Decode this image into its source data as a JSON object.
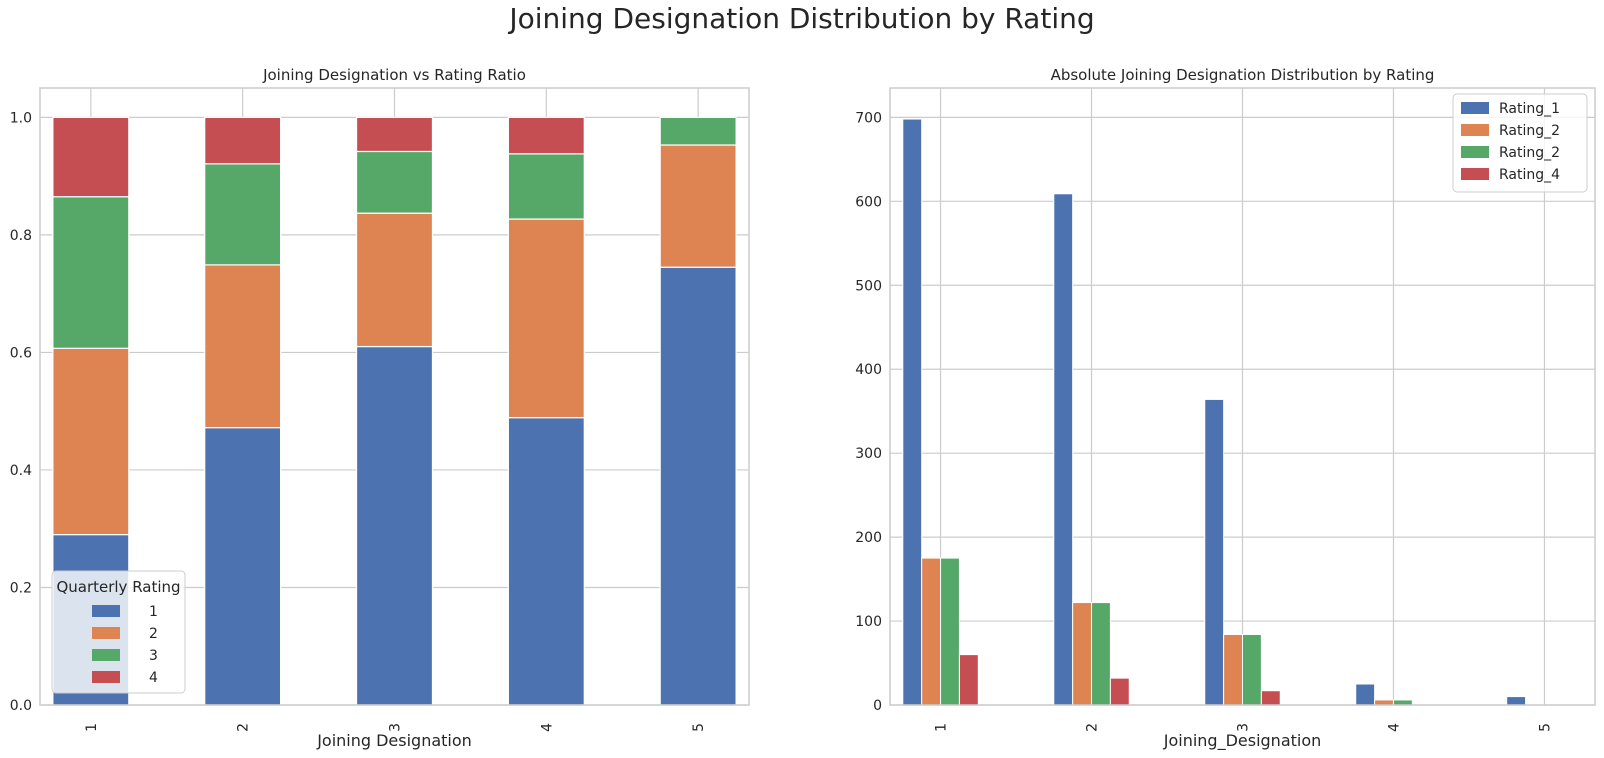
{
  "figure": {
    "suptitle": "Joining Designation Distribution by Rating"
  },
  "chart_data": [
    {
      "type": "bar",
      "stacked": true,
      "title": "Joining Designation vs Rating Ratio",
      "xlabel": "Joining Designation",
      "ylabel": "",
      "categories": [
        "1",
        "2",
        "3",
        "4",
        "5"
      ],
      "ylim": [
        0,
        1.05
      ],
      "yticks": [
        "0.0",
        "0.2",
        "0.4",
        "0.6",
        "0.8",
        "1.0"
      ],
      "grid": true,
      "legend": {
        "title": "Quarterly Rating",
        "placement": "lower-left"
      },
      "series": [
        {
          "name": "1",
          "color": "#4c72b0",
          "values": [
            0.29,
            0.472,
            0.61,
            0.489,
            0.745
          ]
        },
        {
          "name": "2",
          "color": "#dd8452",
          "values": [
            0.317,
            0.277,
            0.227,
            0.338,
            0.208
          ]
        },
        {
          "name": "3",
          "color": "#55a868",
          "values": [
            0.258,
            0.172,
            0.105,
            0.111,
            0.047
          ]
        },
        {
          "name": "4",
          "color": "#c44e52",
          "values": [
            0.135,
            0.079,
            0.058,
            0.062,
            0.0
          ]
        }
      ]
    },
    {
      "type": "bar",
      "stacked": false,
      "title": "Absolute Joining Designation Distribution by Rating",
      "xlabel": "Joining_Designation",
      "ylabel": "",
      "categories": [
        "1",
        "2",
        "3",
        "4",
        "5"
      ],
      "ylim": [
        0,
        735
      ],
      "yticks": [
        "0",
        "100",
        "200",
        "300",
        "400",
        "500",
        "600",
        "700"
      ],
      "grid": true,
      "legend": {
        "placement": "top-right"
      },
      "series": [
        {
          "name": "Rating_1",
          "color": "#4c72b0",
          "values": [
            698,
            609,
            364,
            25,
            10
          ]
        },
        {
          "name": "Rating_2",
          "color": "#dd8452",
          "values": [
            175,
            122,
            84,
            6,
            0
          ]
        },
        {
          "name": "Rating_2",
          "color": "#55a868",
          "values": [
            175,
            122,
            84,
            6,
            0
          ]
        },
        {
          "name": "Rating_4",
          "color": "#c44e52",
          "values": [
            60,
            32,
            17,
            0,
            0
          ]
        }
      ]
    }
  ]
}
